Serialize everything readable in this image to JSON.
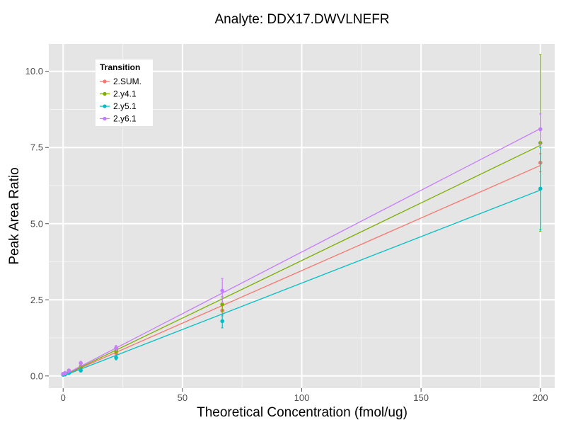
{
  "chart_data": {
    "type": "scatter",
    "title": "Analyte: DDX17.DWVLNEFR",
    "xlabel": "Theoretical Concentration (fmol/ug)",
    "ylabel": "Peak Area Ratio",
    "xlim": [
      -6,
      206
    ],
    "ylim": [
      -0.4,
      10.9
    ],
    "x_ticks": [
      0,
      50,
      100,
      150,
      200
    ],
    "y_ticks": [
      0.0,
      2.5,
      5.0,
      7.5,
      10.0
    ],
    "x_tick_labels": [
      "0",
      "50",
      "100",
      "150",
      "200"
    ],
    "y_tick_labels": [
      "0.0",
      "2.5",
      "5.0",
      "7.5",
      "10.0"
    ],
    "grid": true,
    "legend": {
      "title": "Transition",
      "position": "top-left"
    },
    "x": [
      0,
      0.8,
      2.4,
      7.4,
      22.2,
      66.7,
      200
    ],
    "series": [
      {
        "name": "2.SUM.",
        "color": "#F8766D",
        "values": [
          0.05,
          0.06,
          0.1,
          0.3,
          0.75,
          2.15,
          7.0
        ],
        "error": [
          0.02,
          0.02,
          0.03,
          0.05,
          0.08,
          0.18,
          0.3
        ],
        "fit": [
          0.01,
          0.0345
        ]
      },
      {
        "name": "2.y4.1",
        "color": "#7CAE00",
        "values": [
          0.05,
          0.06,
          0.12,
          0.3,
          0.82,
          2.35,
          7.65
        ],
        "error": [
          0.02,
          0.02,
          0.03,
          0.05,
          0.08,
          0.25,
          2.9
        ],
        "fit": [
          0.01,
          0.0378
        ]
      },
      {
        "name": "2.y5.1",
        "color": "#00BFC4",
        "values": [
          0.04,
          0.05,
          0.1,
          0.18,
          0.6,
          1.8,
          6.15
        ],
        "error": [
          0.02,
          0.02,
          0.03,
          0.05,
          0.07,
          0.22,
          1.35
        ],
        "fit": [
          0.0,
          0.0305
        ]
      },
      {
        "name": "2.y6.1",
        "color": "#C77CFF",
        "values": [
          0.07,
          0.1,
          0.18,
          0.42,
          0.92,
          2.8,
          8.1
        ],
        "error": [
          0.02,
          0.03,
          0.04,
          0.06,
          0.08,
          0.4,
          0.5
        ],
        "fit": [
          0.02,
          0.0405
        ]
      }
    ]
  }
}
